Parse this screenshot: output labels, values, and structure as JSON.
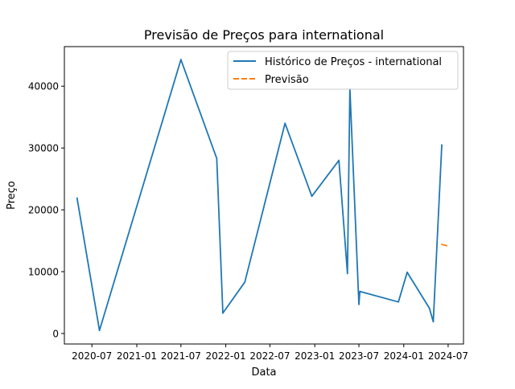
{
  "chart_data": {
    "type": "line",
    "title": "Previsão de Preços para international",
    "xlabel": "Data",
    "ylabel": "Preço",
    "x_ticks": [
      "2020-07",
      "2021-01",
      "2021-07",
      "2022-01",
      "2022-07",
      "2023-01",
      "2023-07",
      "2024-01",
      "2024-07"
    ],
    "y_ticks": [
      0,
      10000,
      20000,
      30000,
      40000
    ],
    "xlim": [
      "2020-03-10",
      "2024-09-02"
    ],
    "ylim": [
      -1700,
      46400
    ],
    "grid": false,
    "legend_position": "top-right",
    "series": [
      {
        "name": "Histórico de Preços - international",
        "color": "#1f77b4",
        "style": "solid",
        "points": [
          {
            "x": "2020-05-01",
            "y": 21900
          },
          {
            "x": "2020-08-01",
            "y": 500
          },
          {
            "x": "2021-07-01",
            "y": 44300
          },
          {
            "x": "2021-11-25",
            "y": 28300
          },
          {
            "x": "2021-12-20",
            "y": 3300
          },
          {
            "x": "2022-03-20",
            "y": 8300
          },
          {
            "x": "2022-09-01",
            "y": 34000
          },
          {
            "x": "2022-12-20",
            "y": 22200
          },
          {
            "x": "2023-04-10",
            "y": 28000
          },
          {
            "x": "2023-05-15",
            "y": 9700
          },
          {
            "x": "2023-05-25",
            "y": 39600
          },
          {
            "x": "2023-07-01",
            "y": 4700
          },
          {
            "x": "2023-07-05",
            "y": 6800
          },
          {
            "x": "2023-12-10",
            "y": 5100
          },
          {
            "x": "2024-01-15",
            "y": 9900
          },
          {
            "x": "2024-04-15",
            "y": 4100
          },
          {
            "x": "2024-05-01",
            "y": 1900
          },
          {
            "x": "2024-06-05",
            "y": 30500
          }
        ]
      },
      {
        "name": "Previsão",
        "color": "#ff7f0e",
        "style": "dashed",
        "points": [
          {
            "x": "2024-06-05",
            "y": 14400
          },
          {
            "x": "2024-06-25",
            "y": 14200
          }
        ]
      }
    ]
  }
}
